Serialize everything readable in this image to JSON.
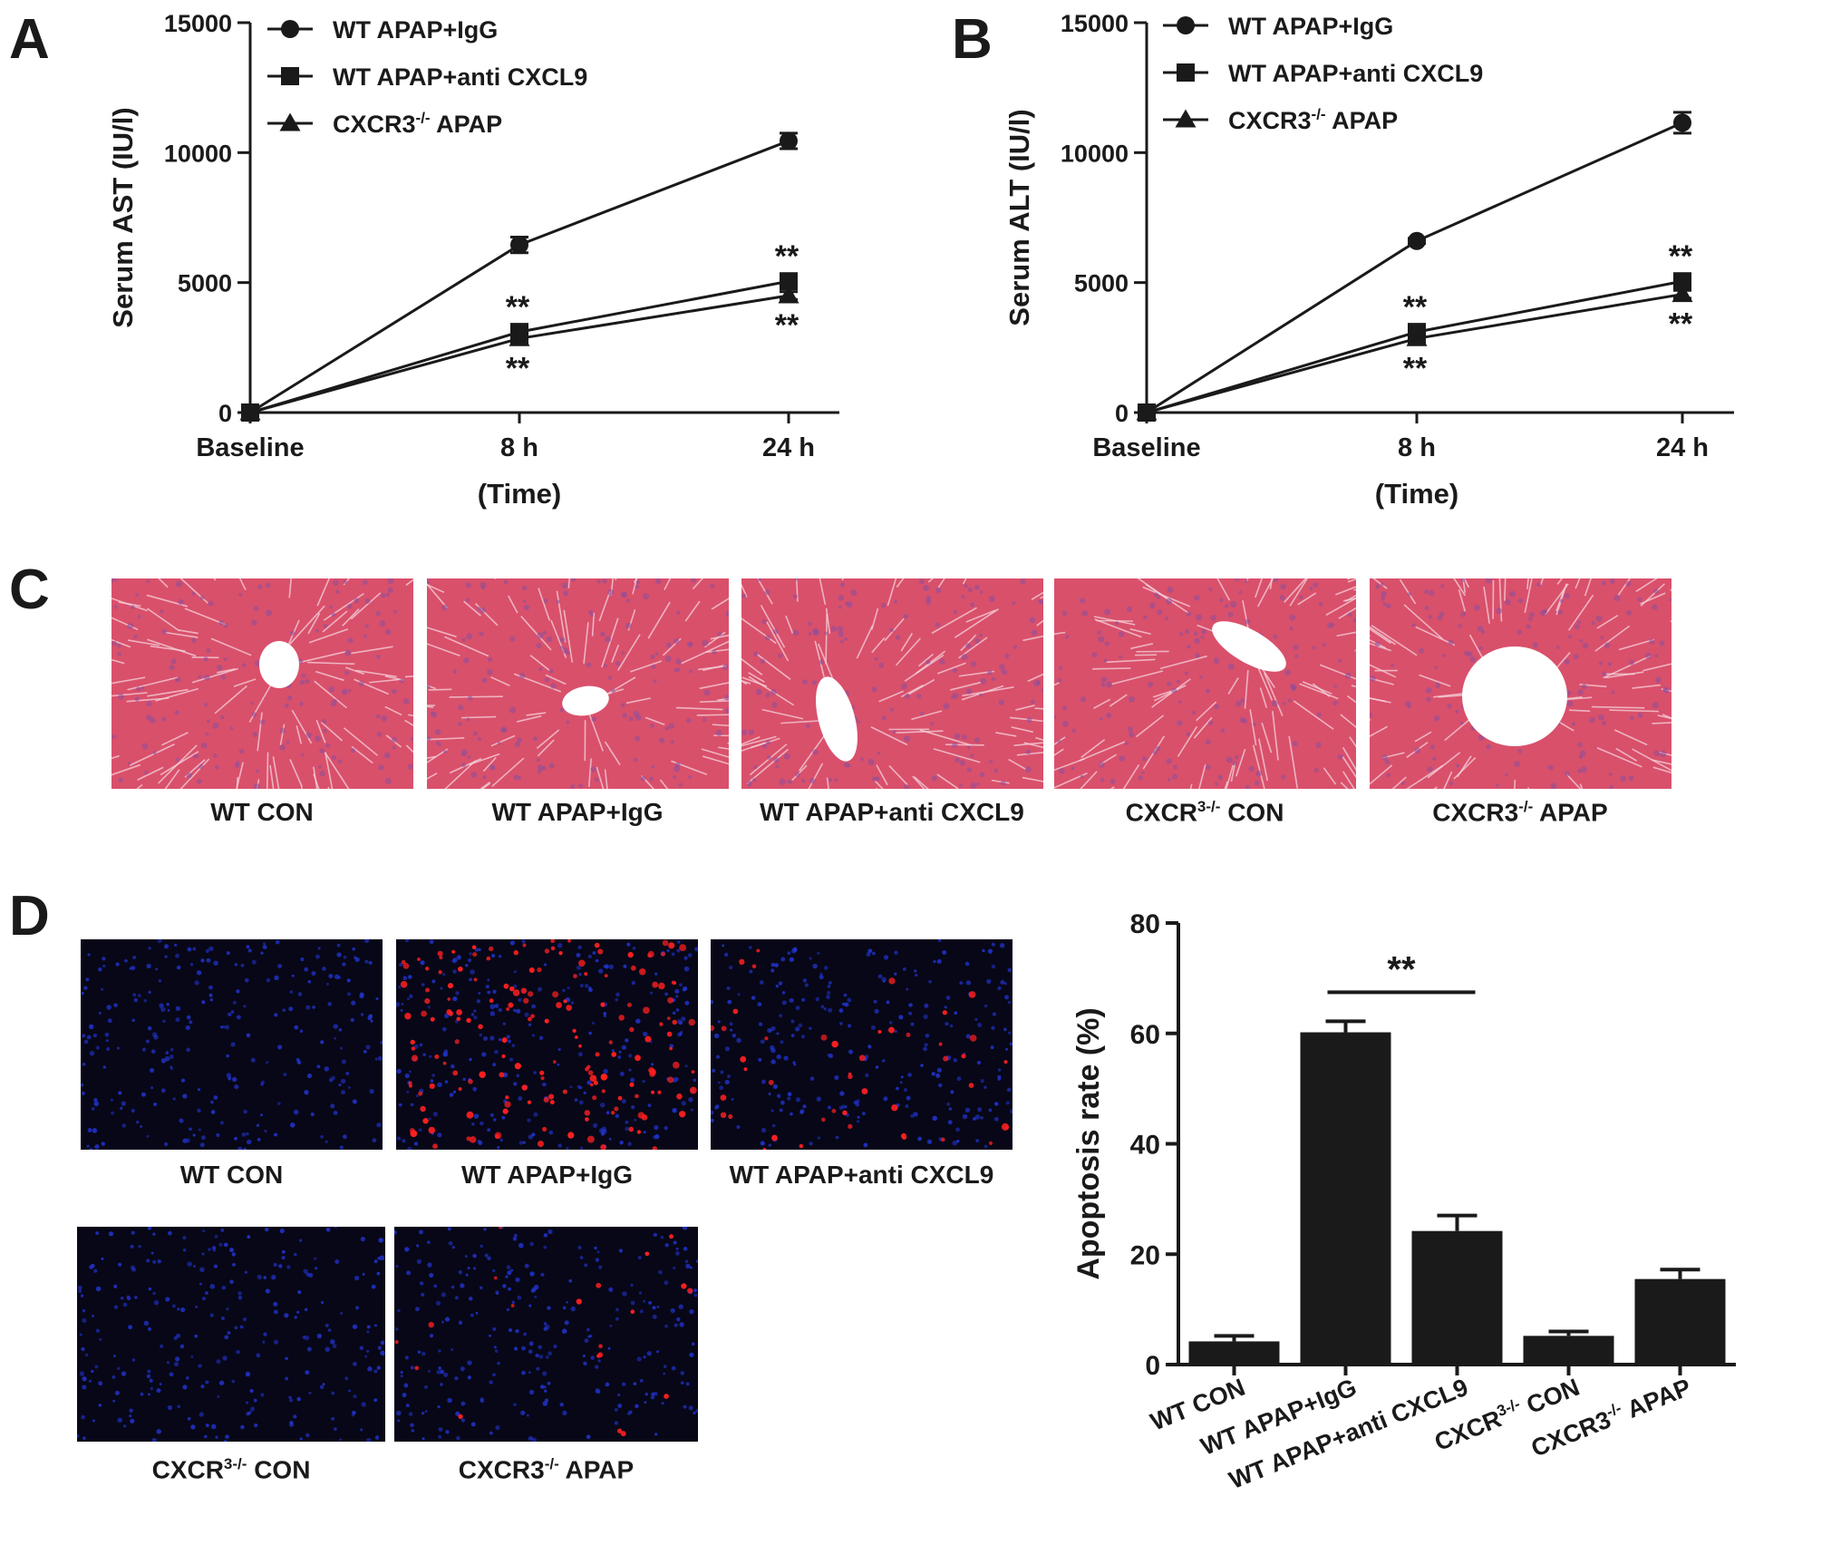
{
  "panels": {
    "a": "A",
    "b": "B",
    "c": "C",
    "d": "D"
  },
  "chart_data": [
    {
      "id": "A",
      "type": "line",
      "categories": [
        "Baseline",
        "8 h",
        "24 h"
      ],
      "xlabel": "(Time)",
      "ylabel": "Serum AST (IU/l)",
      "ylim": [
        0,
        15000
      ],
      "yticks": [
        "0",
        "5000",
        "10000",
        "15000"
      ],
      "legend": "top-left",
      "series": [
        {
          "name": "WT APAP+IgG",
          "marker": "circle",
          "values": [
            0,
            6450,
            10450
          ],
          "errors": [
            80,
            300,
            300
          ]
        },
        {
          "name": "WT APAP+anti CXCL9",
          "marker": "square",
          "values": [
            0,
            3100,
            5050
          ],
          "errors": [
            60,
            150,
            150
          ]
        },
        {
          "name": "CXCR3",
          "name_sup": "-/-",
          "name_tail": " APAP",
          "marker": "triangle",
          "values": [
            0,
            2850,
            4500
          ],
          "errors": [
            60,
            150,
            150
          ]
        }
      ],
      "annotations": [
        {
          "text": "**",
          "category": "8 h",
          "position": "above"
        },
        {
          "text": "**",
          "category": "8 h",
          "position": "below"
        },
        {
          "text": "**",
          "category": "24 h",
          "position": "above"
        },
        {
          "text": "**",
          "category": "24 h",
          "position": "below"
        }
      ]
    },
    {
      "id": "B",
      "type": "line",
      "categories": [
        "Baseline",
        "8 h",
        "24 h"
      ],
      "xlabel": "(Time)",
      "ylabel": "Serum ALT (IU/l)",
      "ylim": [
        0,
        15000
      ],
      "yticks": [
        "0",
        "5000",
        "10000",
        "15000"
      ],
      "legend": "top-left",
      "series": [
        {
          "name": "WT APAP+IgG",
          "marker": "circle",
          "values": [
            0,
            6600,
            11150
          ],
          "errors": [
            80,
            100,
            400
          ]
        },
        {
          "name": "WT APAP+anti CXCL9",
          "marker": "square",
          "values": [
            0,
            3100,
            5050
          ],
          "errors": [
            60,
            150,
            150
          ]
        },
        {
          "name": "CXCR3",
          "name_sup": "-/-",
          "name_tail": " APAP",
          "marker": "triangle",
          "values": [
            0,
            2850,
            4550
          ],
          "errors": [
            60,
            150,
            150
          ]
        }
      ],
      "annotations": [
        {
          "text": "**",
          "category": "8 h",
          "position": "above"
        },
        {
          "text": "**",
          "category": "8 h",
          "position": "below"
        },
        {
          "text": "**",
          "category": "24 h",
          "position": "above"
        },
        {
          "text": "**",
          "category": "24 h",
          "position": "below"
        }
      ]
    },
    {
      "id": "D",
      "type": "bar",
      "categories": [
        {
          "main": "WT CON"
        },
        {
          "main": "WT APAP+IgG"
        },
        {
          "main": "WT APAP+anti CXCL9"
        },
        {
          "main": "CXCR",
          "sup": "3-/-",
          "tail": " CON"
        },
        {
          "main": "CXCR3",
          "sup": "-/-",
          "tail": " APAP"
        }
      ],
      "values": [
        4.2,
        60.2,
        24.2,
        5.2,
        15.5
      ],
      "errors": [
        1.0,
        2.0,
        2.8,
        0.8,
        1.7
      ],
      "ylabel": "Apoptosis rate (%)",
      "ylim": [
        0,
        80
      ],
      "yticks": [
        "0",
        "20",
        "40",
        "60",
        "80"
      ],
      "significance": {
        "text": "**",
        "from": "WT APAP+IgG",
        "to": "WT APAP+anti CXCL9"
      }
    }
  ],
  "he_captions": [
    {
      "main": "WT CON"
    },
    {
      "main": "WT APAP+IgG"
    },
    {
      "main": "WT APAP+anti CXCL9"
    },
    {
      "main": "CXCR",
      "sup": "3-/-",
      "tail": " CON"
    },
    {
      "main": "CXCR3",
      "sup": "-/-",
      "tail": " APAP"
    }
  ],
  "tunel_captions": [
    {
      "main": "WT CON"
    },
    {
      "main": "WT APAP+IgG"
    },
    {
      "main": "WT APAP+anti CXCL9"
    },
    {
      "main": "CXCR",
      "sup": "3-/-",
      "tail": " CON"
    },
    {
      "main": "CXCR3",
      "sup": "-/-",
      "tail": " APAP"
    }
  ],
  "colors": {
    "line": "#1a1a1a",
    "bar": "#1a1a1a",
    "he_base": "#d9506b",
    "he_light": "#e88da0",
    "he_nuclei": "#8a4f9c",
    "tunel_bg": "#070718",
    "dapi": "#2233cc",
    "tunel": "#ff2020"
  }
}
